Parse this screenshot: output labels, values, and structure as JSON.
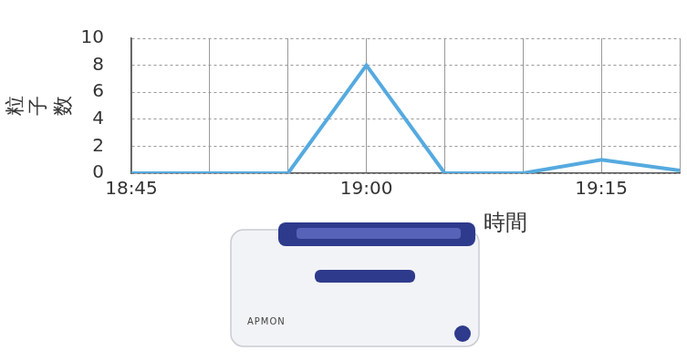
{
  "chart_data": {
    "type": "line",
    "y_label": "粒子数",
    "x_label": "時間",
    "categories": [
      "18:45",
      null,
      null,
      "19:00",
      null,
      null,
      "19:15",
      null
    ],
    "values": [
      0,
      0,
      0,
      8,
      0,
      0,
      1,
      0.2
    ],
    "color": "#55aadf",
    "ylim": [
      0,
      10
    ],
    "yticks": [
      0,
      2,
      4,
      6,
      8,
      10
    ],
    "grid": true,
    "marker": "none",
    "annotations": [
      "APMON"
    ]
  }
}
